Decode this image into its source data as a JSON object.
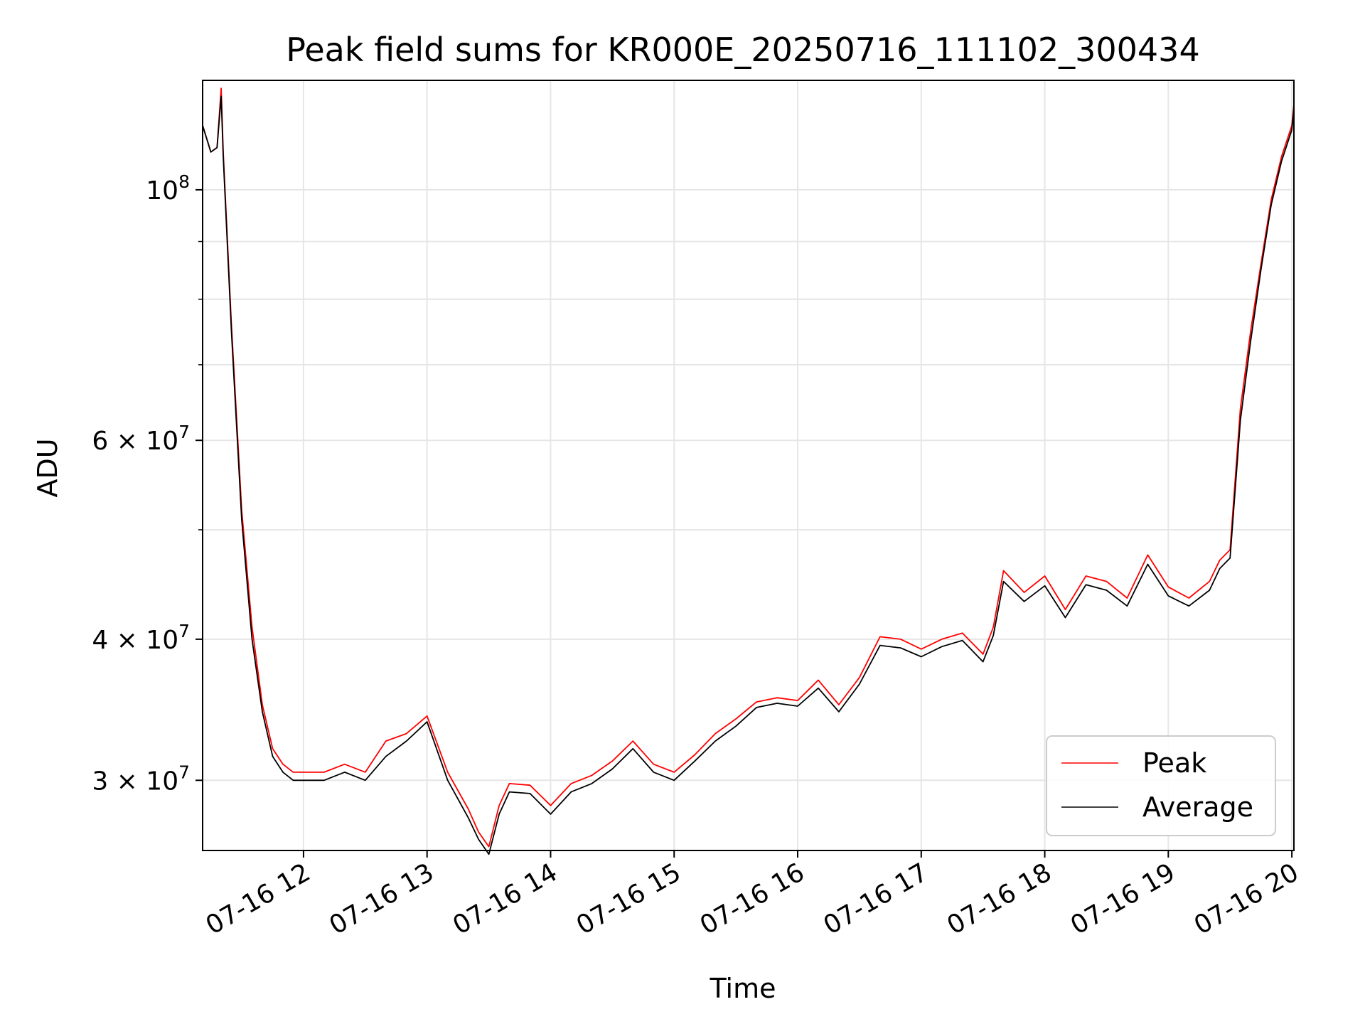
{
  "chart_data": {
    "type": "line",
    "title": "Peak field sums for KR000E_20250716_111102_300434",
    "xlabel": "Time",
    "ylabel": "ADU",
    "xscale": "time",
    "yscale": "log",
    "grid": true,
    "legend_position": "bottom-right",
    "xlim": [
      "2025-07-16 11:11",
      "2025-07-16 20:01"
    ],
    "ylim": [
      26000000,
      125000000
    ],
    "x_ticks": [
      "2025-07-16 12:00",
      "2025-07-16 13:00",
      "2025-07-16 14:00",
      "2025-07-16 15:00",
      "2025-07-16 16:00",
      "2025-07-16 17:00",
      "2025-07-16 18:00",
      "2025-07-16 19:00",
      "2025-07-16 20:00"
    ],
    "x_tick_labels": [
      "07-16 12",
      "07-16 13",
      "07-16 14",
      "07-16 15",
      "07-16 16",
      "07-16 17",
      "07-16 18",
      "07-16 19",
      "07-16 20"
    ],
    "y_ticks": [
      30000000,
      40000000,
      60000000,
      100000000
    ],
    "y_tick_labels": [
      {
        "base": "3 × 10",
        "exp": "7"
      },
      {
        "base": "4 × 10",
        "exp": "7"
      },
      {
        "base": "6 × 10",
        "exp": "7"
      },
      {
        "base": "10",
        "exp": "8"
      }
    ],
    "y_minor_ticks": [
      50000000,
      70000000,
      80000000,
      90000000
    ],
    "x": [
      "2025-07-16 11:11",
      "2025-07-16 11:15",
      "2025-07-16 11:18",
      "2025-07-16 11:20",
      "2025-07-16 11:21",
      "2025-07-16 11:25",
      "2025-07-16 11:30",
      "2025-07-16 11:35",
      "2025-07-16 11:40",
      "2025-07-16 11:45",
      "2025-07-16 11:50",
      "2025-07-16 11:55",
      "2025-07-16 12:00",
      "2025-07-16 12:10",
      "2025-07-16 12:20",
      "2025-07-16 12:30",
      "2025-07-16 12:40",
      "2025-07-16 12:50",
      "2025-07-16 13:00",
      "2025-07-16 13:10",
      "2025-07-16 13:20",
      "2025-07-16 13:25",
      "2025-07-16 13:30",
      "2025-07-16 13:35",
      "2025-07-16 13:40",
      "2025-07-16 13:50",
      "2025-07-16 14:00",
      "2025-07-16 14:10",
      "2025-07-16 14:20",
      "2025-07-16 14:30",
      "2025-07-16 14:40",
      "2025-07-16 14:50",
      "2025-07-16 15:00",
      "2025-07-16 15:10",
      "2025-07-16 15:20",
      "2025-07-16 15:30",
      "2025-07-16 15:40",
      "2025-07-16 15:50",
      "2025-07-16 16:00",
      "2025-07-16 16:10",
      "2025-07-16 16:20",
      "2025-07-16 16:30",
      "2025-07-16 16:40",
      "2025-07-16 16:50",
      "2025-07-16 17:00",
      "2025-07-16 17:10",
      "2025-07-16 17:20",
      "2025-07-16 17:30",
      "2025-07-16 17:35",
      "2025-07-16 17:40",
      "2025-07-16 17:50",
      "2025-07-16 18:00",
      "2025-07-16 18:10",
      "2025-07-16 18:20",
      "2025-07-16 18:30",
      "2025-07-16 18:40",
      "2025-07-16 18:50",
      "2025-07-16 19:00",
      "2025-07-16 19:10",
      "2025-07-16 19:20",
      "2025-07-16 19:25",
      "2025-07-16 19:30",
      "2025-07-16 19:35",
      "2025-07-16 19:40",
      "2025-07-16 19:45",
      "2025-07-16 19:50",
      "2025-07-16 19:55",
      "2025-07-16 20:00",
      "2025-07-16 20:01"
    ],
    "series": [
      {
        "name": "Peak",
        "color": "#ff0000",
        "values": [
          114000000,
          108000000,
          109000000,
          123000000,
          108000000,
          76000000,
          52000000,
          41000000,
          35000000,
          32000000,
          31000000,
          30500000,
          30500000,
          30500000,
          31000000,
          30500000,
          32500000,
          33000000,
          34200000,
          30500000,
          28300000,
          27000000,
          26200000,
          28500000,
          29800000,
          29700000,
          28500000,
          29800000,
          30300000,
          31200000,
          32500000,
          31000000,
          30500000,
          31600000,
          33000000,
          34000000,
          35200000,
          35500000,
          35300000,
          36800000,
          35000000,
          37000000,
          40200000,
          40000000,
          39200000,
          40000000,
          40500000,
          38800000,
          41000000,
          46000000,
          44000000,
          45500000,
          42500000,
          45500000,
          45000000,
          43500000,
          47500000,
          44500000,
          43500000,
          45000000,
          47000000,
          48000000,
          64000000,
          75000000,
          86000000,
          98000000,
          107000000,
          114000000,
          119000000
        ]
      },
      {
        "name": "Average",
        "color": "#000000",
        "values": [
          114000000,
          108000000,
          109000000,
          121000000,
          107000000,
          75000000,
          51000000,
          40000000,
          34500000,
          31500000,
          30500000,
          30000000,
          30000000,
          30000000,
          30500000,
          30000000,
          31500000,
          32500000,
          33800000,
          30000000,
          27800000,
          26600000,
          25800000,
          28000000,
          29300000,
          29200000,
          28000000,
          29300000,
          29800000,
          30700000,
          32000000,
          30500000,
          30000000,
          31200000,
          32500000,
          33500000,
          34800000,
          35100000,
          34900000,
          36200000,
          34500000,
          36500000,
          39500000,
          39300000,
          38600000,
          39400000,
          39900000,
          38200000,
          40300000,
          45000000,
          43200000,
          44600000,
          41800000,
          44700000,
          44200000,
          42800000,
          46600000,
          43700000,
          42800000,
          44200000,
          46200000,
          47200000,
          62500000,
          73500000,
          85000000,
          97000000,
          106000000,
          113000000,
          118000000
        ]
      }
    ]
  }
}
